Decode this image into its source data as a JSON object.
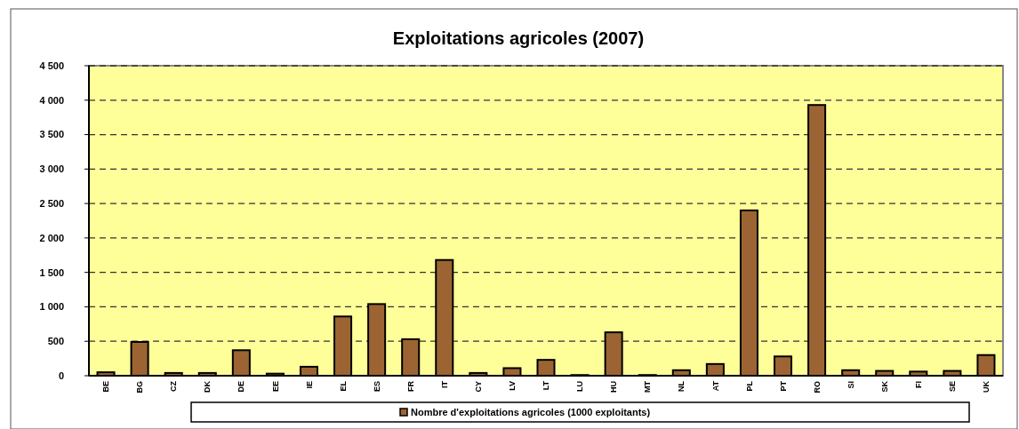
{
  "chart_data": {
    "type": "bar",
    "title": "Exploitations agricoles (2007)",
    "categories": [
      "BE",
      "BG",
      "CZ",
      "DK",
      "DE",
      "EE",
      "IE",
      "EL",
      "ES",
      "FR",
      "IT",
      "CY",
      "LV",
      "LT",
      "LU",
      "HU",
      "MT",
      "NL",
      "AT",
      "PL",
      "PT",
      "RO",
      "SI",
      "SK",
      "FI",
      "SE",
      "UK"
    ],
    "series": [
      {
        "name": "Nombre d'exploitations agricoles (1000 exploitants)",
        "color": "#9c6433",
        "values": [
          50,
          490,
          40,
          40,
          370,
          30,
          130,
          860,
          1040,
          530,
          1680,
          40,
          110,
          230,
          10,
          630,
          10,
          80,
          170,
          2400,
          280,
          3930,
          80,
          70,
          60,
          70,
          300
        ]
      }
    ],
    "ylim": [
      0,
      4500
    ],
    "yticks": [
      0,
      {
        "value": 500,
        "label": "500"
      },
      {
        "value": 1000,
        "label": "1 000"
      },
      {
        "value": 1500,
        "label": "1 500"
      },
      {
        "value": 2000,
        "label": "2 000"
      },
      {
        "value": 2500,
        "label": "2 500"
      },
      {
        "value": 3000,
        "label": "3 000"
      },
      {
        "value": 3500,
        "label": "3 500"
      },
      {
        "value": 4000,
        "label": "4 000"
      },
      {
        "value": 4500,
        "label": "4 500"
      }
    ],
    "grid": "y",
    "legend": "bottom"
  }
}
